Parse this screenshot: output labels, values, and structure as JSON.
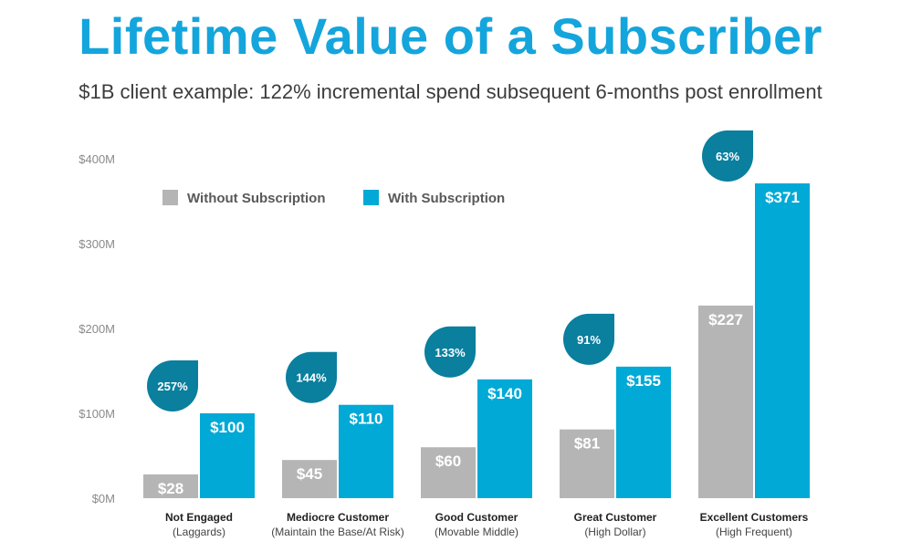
{
  "title": "Lifetime Value of a Subscriber",
  "subtitle": "$1B client example: 122% incremental spend subsequent 6-months post enrollment",
  "colors": {
    "title": "#14a5dc",
    "without": "#b5b5b5",
    "with": "#00a9d6",
    "badge": "#0a7f9e"
  },
  "chart_data": {
    "type": "bar",
    "title": "",
    "xlabel": "",
    "ylabel": "",
    "ylim": [
      0,
      400
    ],
    "yticks": [
      "$0M",
      "$100M",
      "$200M",
      "$300M",
      "$400M"
    ],
    "legend_position": "top-left",
    "grid": false,
    "categories": [
      "Not Engaged",
      "Mediocre Customer",
      "Good Customer",
      "Great Customer",
      "Excellent Customers"
    ],
    "category_subtitles": [
      "(Laggards)",
      "(Maintain the Base/At Risk)",
      "(Movable Middle)",
      "(High Dollar)",
      "(High Frequent)"
    ],
    "series": [
      {
        "name": "Without Subscription",
        "values": [
          28,
          45,
          60,
          81,
          227
        ],
        "labels": [
          "$28",
          "$45",
          "$60",
          "$81",
          "$227"
        ]
      },
      {
        "name": "With Subscription",
        "values": [
          100,
          110,
          140,
          155,
          371
        ],
        "labels": [
          "$100",
          "$110",
          "$140",
          "$155",
          "$371"
        ]
      }
    ],
    "annotations": [
      "257%",
      "144%",
      "133%",
      "91%",
      "63%"
    ]
  }
}
